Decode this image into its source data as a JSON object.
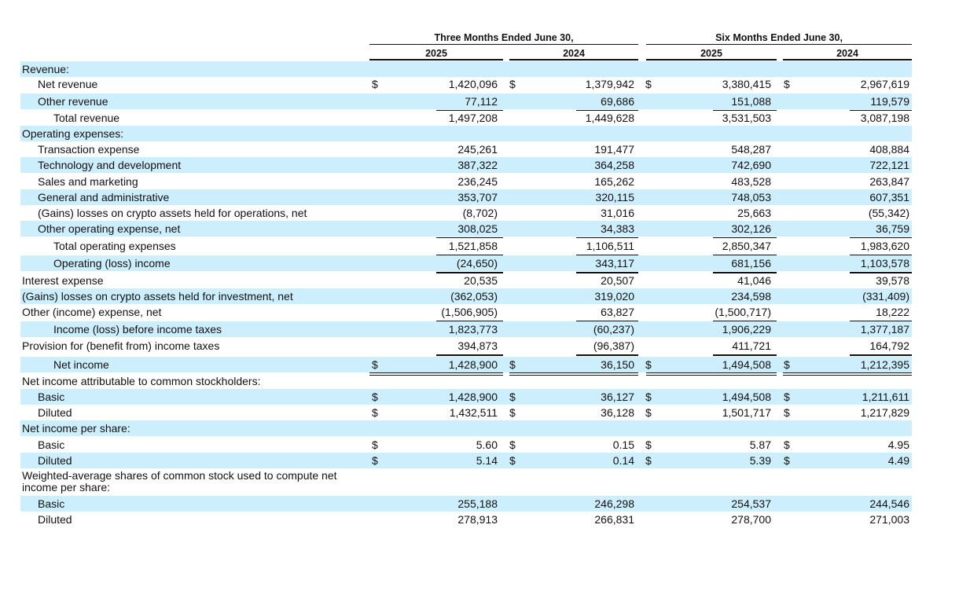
{
  "header": {
    "groups": [
      "Three Months Ended June 30,",
      "Six Months Ended June 30,"
    ],
    "years": [
      "2025",
      "2024",
      "2025",
      "2024"
    ]
  },
  "table": {
    "rows": [
      {
        "label": "Revenue:"
      },
      {
        "label": "Net revenue",
        "currency": "$",
        "values": [
          "1,420,096",
          "1,379,942",
          "3,380,415",
          "2,967,619"
        ]
      },
      {
        "label": "Other revenue",
        "values": [
          "77,112",
          "69,686",
          "151,088",
          "119,579"
        ]
      },
      {
        "label": "Total revenue",
        "values": [
          "1,497,208",
          "1,449,628",
          "3,531,503",
          "3,087,198"
        ]
      },
      {
        "label": "Operating expenses:"
      },
      {
        "label": "Transaction expense",
        "values": [
          "245,261",
          "191,477",
          "548,287",
          "408,884"
        ]
      },
      {
        "label": "Technology and development",
        "values": [
          "387,322",
          "364,258",
          "742,690",
          "722,121"
        ]
      },
      {
        "label": "Sales and marketing",
        "values": [
          "236,245",
          "165,262",
          "483,528",
          "263,847"
        ]
      },
      {
        "label": "General and administrative",
        "values": [
          "353,707",
          "320,115",
          "748,053",
          "607,351"
        ]
      },
      {
        "label": "(Gains) losses on crypto assets held for operations, net",
        "values": [
          "(8,702)",
          "31,016",
          "25,663",
          "(55,342)"
        ]
      },
      {
        "label": "Other operating expense, net",
        "values": [
          "308,025",
          "34,383",
          "302,126",
          "36,759"
        ]
      },
      {
        "label": "Total operating expenses",
        "values": [
          "1,521,858",
          "1,106,511",
          "2,850,347",
          "1,983,620"
        ]
      },
      {
        "label": "Operating (loss) income",
        "values": [
          "(24,650)",
          "343,117",
          "681,156",
          "1,103,578"
        ]
      },
      {
        "label": "Interest expense",
        "values": [
          "20,535",
          "20,507",
          "41,046",
          "39,578"
        ]
      },
      {
        "label": "(Gains) losses on crypto assets held for investment, net",
        "values": [
          "(362,053)",
          "319,020",
          "234,598",
          "(331,409)"
        ]
      },
      {
        "label": "Other (income) expense, net",
        "values": [
          "(1,506,905)",
          "63,827",
          "(1,500,717)",
          "18,222"
        ]
      },
      {
        "label": "Income (loss) before income taxes",
        "values": [
          "1,823,773",
          "(60,237)",
          "1,906,229",
          "1,377,187"
        ]
      },
      {
        "label": "Provision for (benefit from) income taxes",
        "values": [
          "394,873",
          "(96,387)",
          "411,721",
          "164,792"
        ]
      },
      {
        "label": "Net income",
        "currency": "$",
        "values": [
          "1,428,900",
          "36,150",
          "1,494,508",
          "1,212,395"
        ]
      },
      {
        "label": "Net income attributable to common stockholders:"
      },
      {
        "label": "Basic",
        "currency": "$",
        "values": [
          "1,428,900",
          "36,127",
          "1,494,508",
          "1,211,611"
        ]
      },
      {
        "label": "Diluted",
        "currency": "$",
        "values": [
          "1,432,511",
          "36,128",
          "1,501,717",
          "1,217,829"
        ]
      },
      {
        "label": "Net income per share:"
      },
      {
        "label": "Basic",
        "currency": "$",
        "values": [
          "5.60",
          "0.15",
          "5.87",
          "4.95"
        ]
      },
      {
        "label": "Diluted",
        "currency": "$",
        "values": [
          "5.14",
          "0.14",
          "5.39",
          "4.49"
        ]
      },
      {
        "label": "Weighted-average shares of common stock used to compute net income per share:"
      },
      {
        "label": "Basic",
        "values": [
          "255,188",
          "246,298",
          "254,537",
          "244,546"
        ]
      },
      {
        "label": "Diluted",
        "values": [
          "278,913",
          "266,831",
          "278,700",
          "271,003"
        ]
      }
    ]
  }
}
